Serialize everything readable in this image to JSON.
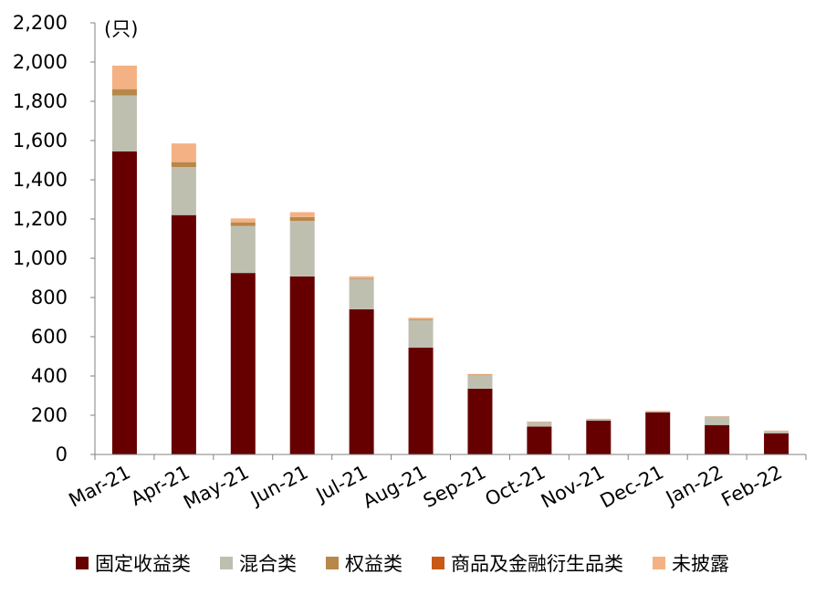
{
  "chart_data": {
    "type": "bar",
    "stacked": true,
    "unit_label": "(只)",
    "categories": [
      "Mar-21",
      "Apr-21",
      "May-21",
      "Jun-21",
      "Jul-21",
      "Aug-21",
      "Sep-21",
      "Oct-21",
      "Nov-21",
      "Dec-21",
      "Jan-22",
      "Feb-22"
    ],
    "series": [
      {
        "name": "固定收益类",
        "color": "#660000",
        "values": [
          1545,
          1220,
          925,
          907,
          740,
          545,
          335,
          142,
          172,
          215,
          150,
          108
        ]
      },
      {
        "name": "混合类",
        "color": "#bfbfb0",
        "values": [
          285,
          245,
          240,
          283,
          155,
          140,
          70,
          23,
          7,
          3,
          43,
          12
        ]
      },
      {
        "name": "权益类",
        "color": "#b8874a",
        "values": [
          32,
          25,
          18,
          20,
          3,
          5,
          2,
          0,
          0,
          0,
          0,
          0
        ]
      },
      {
        "name": "商品及金融衍生品类",
        "color": "#c85a15",
        "values": [
          0,
          0,
          0,
          0,
          0,
          0,
          0,
          0,
          0,
          0,
          0,
          0
        ]
      },
      {
        "name": "未披露",
        "color": "#f4b183",
        "values": [
          120,
          95,
          20,
          25,
          10,
          7,
          3,
          3,
          3,
          4,
          2,
          2
        ]
      }
    ],
    "yticks": [
      "0",
      "200",
      "400",
      "600",
      "800",
      "1,000",
      "1,200",
      "1,400",
      "1,600",
      "1,800",
      "2,000",
      "2,200"
    ],
    "ylim": [
      0,
      2200
    ],
    "legend_position": "bottom",
    "grid": false
  }
}
